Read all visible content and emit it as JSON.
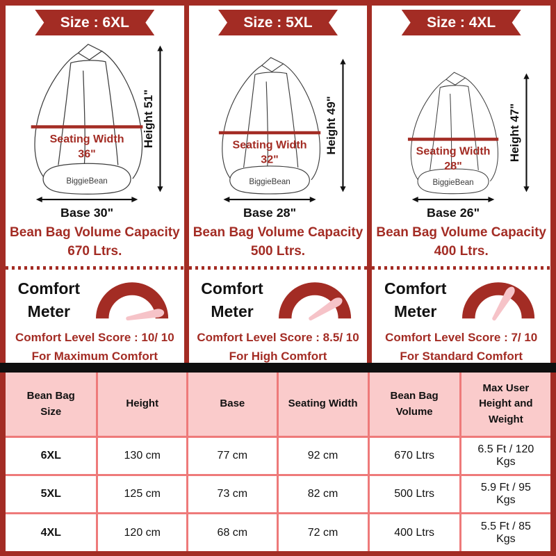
{
  "colors": {
    "dark_red": "#A32C24",
    "needle_pink": "#F6C3C8",
    "table_header_pink": "#FACBCB",
    "table_border_red": "#EE7A7A",
    "bar_black": "#0F0F0F",
    "sketch_gray": "#3C3C3C"
  },
  "columns": [
    {
      "size_label": "Size : 6XL",
      "height_label": "Height 51\"",
      "seating_width_line1": "Seating Width",
      "seating_width_line2": "36\"",
      "brand": "BiggieBean",
      "base_label": "Base 30\"",
      "volume_line1": "Bean Bag Volume Capacity",
      "volume_line2": "670 Ltrs.",
      "comfort_title_line1": "Comfort",
      "comfort_title_line2": "Meter",
      "score_label": "Comfort Level Score : 10/ 10",
      "comfort_level_label": "For Maximum Comfort",
      "bag_scale": 1.0,
      "needle_angle_deg": 6
    },
    {
      "size_label": "Size : 5XL",
      "height_label": "Height 49\"",
      "seating_width_line1": "Seating Width",
      "seating_width_line2": "32\"",
      "brand": "BiggieBean",
      "base_label": "Base 28\"",
      "volume_line1": "Bean Bag Volume Capacity",
      "volume_line2": "500 Ltrs.",
      "comfort_title_line1": "Comfort",
      "comfort_title_line2": "Meter",
      "score_label": "Comfort Level Score : 8.5/ 10",
      "comfort_level_label": "For High Comfort",
      "bag_scale": 0.91,
      "needle_angle_deg": 28
    },
    {
      "size_label": "Size : 4XL",
      "height_label": "Height 47\"",
      "seating_width_line1": "Seating Width",
      "seating_width_line2": "28\"",
      "brand": "BiggieBean",
      "base_label": "Base 26\"",
      "volume_line1": "Bean Bag Volume Capacity",
      "volume_line2": "400 Ltrs.",
      "comfort_title_line1": "Comfort",
      "comfort_title_line2": "Meter",
      "score_label": "Comfort Level Score : 7/ 10",
      "comfort_level_label": "For Standard Comfort",
      "bag_scale": 0.81,
      "needle_angle_deg": 55
    }
  ],
  "table": {
    "headers": [
      "Bean Bag Size",
      "Height",
      "Base",
      "Seating Width",
      "Bean Bag Volume",
      "Max User Height and Weight"
    ],
    "rows": [
      {
        "size": "6XL",
        "height": "130 cm",
        "base": "77 cm",
        "seating_width": "92 cm",
        "volume": "670 Ltrs",
        "max_user": "6.5 Ft / 120 Kgs"
      },
      {
        "size": "5XL",
        "height": "125 cm",
        "base": "73 cm",
        "seating_width": "82 cm",
        "volume": "500 Ltrs",
        "max_user": "5.9 Ft / 95 Kgs"
      },
      {
        "size": "4XL",
        "height": "120 cm",
        "base": "68 cm",
        "seating_width": "72 cm",
        "volume": "400 Ltrs",
        "max_user": "5.5 Ft / 85 Kgs"
      }
    ]
  }
}
